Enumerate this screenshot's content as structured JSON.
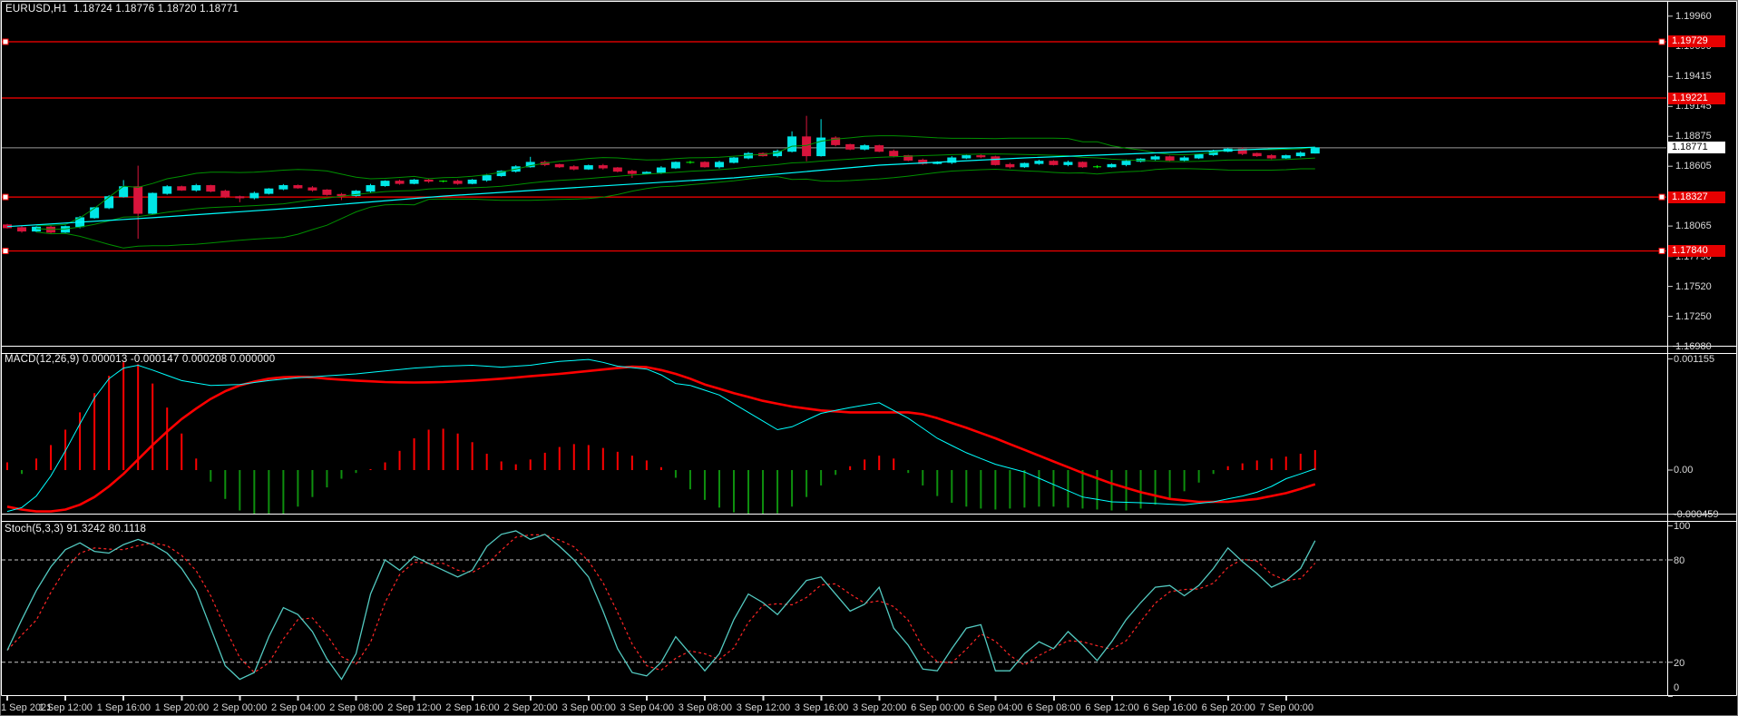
{
  "app": {
    "window_title": "EURUSD,H1"
  },
  "chart_data": [
    {
      "type": "candlestick",
      "title": "EURUSD,H1  1.18724 1.18776 1.18720 1.18771",
      "symbol": "EURUSD",
      "timeframe": "H1",
      "current_ohlc": {
        "open": 1.18724,
        "high": 1.18776,
        "low": 1.1872,
        "close": 1.18771
      },
      "y_axis_ticks": [
        "1.19960",
        "1.19690",
        "1.19415",
        "1.19145",
        "1.18875",
        "1.18605",
        "1.18335",
        "1.18065",
        "1.17790",
        "1.17520",
        "1.17250",
        "1.16980"
      ],
      "x_axis_labels": [
        "1 Sep 2021",
        "1 Sep 12:00",
        "1 Sep 16:00",
        "1 Sep 20:00",
        "2 Sep 00:00",
        "2 Sep 04:00",
        "2 Sep 08:00",
        "2 Sep 12:00",
        "2 Sep 16:00",
        "2 Sep 20:00",
        "3 Sep 00:00",
        "3 Sep 04:00",
        "3 Sep 08:00",
        "3 Sep 12:00",
        "3 Sep 16:00",
        "3 Sep 20:00",
        "6 Sep 00:00",
        "6 Sep 04:00",
        "6 Sep 08:00",
        "6 Sep 12:00",
        "6 Sep 16:00",
        "6 Sep 20:00",
        "7 Sep 00:00"
      ],
      "horizontal_lines": [
        {
          "label": "1.19729",
          "value": 1.19729,
          "end_markers": true
        },
        {
          "label": "1.19221",
          "value": 1.19221,
          "end_markers": false
        },
        {
          "label": "1.18327",
          "value": 1.18327,
          "end_markers": true
        },
        {
          "label": "1.17840",
          "value": 1.1784,
          "end_markers": true
        }
      ],
      "bid_line": {
        "label": "1.18771",
        "value": 1.18771
      },
      "candles": {
        "first_open": 1.18075,
        "closes": [
          1.1805,
          1.1802,
          1.18055,
          1.1801,
          1.1806,
          1.1814,
          1.1823,
          1.1833,
          1.1842,
          1.1818,
          1.1836,
          1.1842,
          1.1839,
          1.1843,
          1.1838,
          1.1833,
          1.1832,
          1.1836,
          1.184,
          1.1843,
          1.1841,
          1.1839,
          1.1835,
          1.1834,
          1.1838,
          1.1843,
          1.1847,
          1.1845,
          1.1848,
          1.1847,
          1.1847,
          1.1845,
          1.1848,
          1.1852,
          1.1856,
          1.186,
          1.1864,
          1.1862,
          1.186,
          1.1858,
          1.1861,
          1.1859,
          1.1856,
          1.1854,
          1.1855,
          1.1859,
          1.1864,
          1.1864,
          1.186,
          1.1864,
          1.1868,
          1.1872,
          1.187,
          1.1874,
          1.1887,
          1.187,
          1.1886,
          1.188,
          1.1876,
          1.1879,
          1.1874,
          1.187,
          1.1866,
          1.1863,
          1.1864,
          1.1868,
          1.187,
          1.1869,
          1.1862,
          1.186,
          1.1863,
          1.1865,
          1.1862,
          1.1864,
          1.186,
          1.186,
          1.1862,
          1.1865,
          1.1867,
          1.1869,
          1.1866,
          1.1868,
          1.1871,
          1.1874,
          1.1876,
          1.1872,
          1.187,
          1.1868,
          1.187,
          1.18724,
          1.18771
        ],
        "wick_overrides": {
          "8": {
            "h": 1.1848
          },
          "9": {
            "h": 1.1861,
            "l": 1.1795
          },
          "16": {
            "l": 1.1828
          },
          "23": {
            "l": 1.183
          },
          "36": {
            "h": 1.1869
          },
          "43": {
            "l": 1.185
          },
          "54": {
            "h": 1.1892
          },
          "55": {
            "h": 1.1906,
            "l": 1.1865
          },
          "56": {
            "h": 1.1903
          },
          "90": {
            "h": 1.18776,
            "l": 1.1872
          }
        }
      },
      "overlays": {
        "bollinger": {
          "period": 20,
          "deviation": 2,
          "color": "#009000"
        },
        "slow_ma": {
          "color": "#00ffff",
          "points": [
            [
              0,
              1.1806
            ],
            [
              10,
              1.1814
            ],
            [
              20,
              1.1823
            ],
            [
              30,
              1.18335
            ],
            [
              40,
              1.1842
            ],
            [
              50,
              1.185
            ],
            [
              60,
              1.18615
            ],
            [
              70,
              1.1868
            ],
            [
              80,
              1.1873
            ],
            [
              90,
              1.18777
            ]
          ]
        }
      },
      "colors": {
        "bull": "#00e6e6",
        "bear": "#d8143c",
        "doji": "#00ff00",
        "hline": "#ff0000",
        "bid_line": "#9a9a9a",
        "badge_bg": "#e60000",
        "badge_text": "#ffffff",
        "bid_badge_bg": "#ffffff",
        "bid_badge_text": "#000000"
      }
    },
    {
      "type": "macd",
      "title": "MACD(12,26,9) 0.000013 -0.000147 0.000208 0.000000",
      "params": "12,26,9",
      "current_values": [
        "0.000013",
        "-0.000147",
        "0.000208",
        "0.000000"
      ],
      "y_axis_ticks": [
        {
          "label": "0.001155",
          "value": 1155
        },
        {
          "label": "0.00",
          "value": 0
        },
        {
          "label": "-0.000459",
          "value": -459
        }
      ],
      "histogram_micro": [
        80,
        -40,
        120,
        260,
        420,
        600,
        800,
        980,
        1120,
        1100,
        900,
        650,
        380,
        120,
        -120,
        -300,
        -420,
        -480,
        -500,
        -460,
        -380,
        -280,
        -180,
        -90,
        -30,
        10,
        80,
        200,
        330,
        420,
        430,
        380,
        290,
        170,
        90,
        60,
        110,
        180,
        240,
        270,
        260,
        230,
        190,
        150,
        100,
        30,
        -80,
        -200,
        -310,
        -390,
        -440,
        -470,
        -480,
        -450,
        -380,
        -280,
        -160,
        -50,
        40,
        110,
        150,
        120,
        -30,
        -160,
        -270,
        -340,
        -380,
        -400,
        -410,
        -400,
        -390,
        -380,
        -380,
        -390,
        -400,
        -410,
        -420,
        -420,
        -400,
        -360,
        -300,
        -220,
        -130,
        -40,
        40,
        70,
        100,
        120,
        140,
        170,
        208
      ],
      "main_line_anchors": [
        [
          0,
          -430
        ],
        [
          1,
          -390
        ],
        [
          2,
          -270
        ],
        [
          3,
          -60
        ],
        [
          4,
          200
        ],
        [
          5,
          480
        ],
        [
          6,
          750
        ],
        [
          7,
          950
        ],
        [
          8,
          1060
        ],
        [
          9,
          1090
        ],
        [
          10,
          1040
        ],
        [
          12,
          930
        ],
        [
          14,
          880
        ],
        [
          16,
          890
        ],
        [
          18,
          930
        ],
        [
          20,
          960
        ],
        [
          22,
          980
        ],
        [
          24,
          1000
        ],
        [
          26,
          1030
        ],
        [
          28,
          1060
        ],
        [
          30,
          1080
        ],
        [
          32,
          1090
        ],
        [
          34,
          1070
        ],
        [
          36,
          1090
        ],
        [
          38,
          1130
        ],
        [
          40,
          1150
        ],
        [
          41,
          1120
        ],
        [
          42,
          1080
        ],
        [
          44,
          1050
        ],
        [
          45,
          990
        ],
        [
          46,
          900
        ],
        [
          47,
          880
        ],
        [
          49,
          780
        ],
        [
          51,
          600
        ],
        [
          53,
          420
        ],
        [
          54,
          450
        ],
        [
          56,
          590
        ],
        [
          58,
          650
        ],
        [
          60,
          700
        ],
        [
          62,
          540
        ],
        [
          64,
          330
        ],
        [
          66,
          180
        ],
        [
          68,
          60
        ],
        [
          70,
          -20
        ],
        [
          72,
          -150
        ],
        [
          74,
          -280
        ],
        [
          76,
          -330
        ],
        [
          78,
          -340
        ],
        [
          80,
          -355
        ],
        [
          81,
          -360
        ],
        [
          83,
          -330
        ],
        [
          85,
          -270
        ],
        [
          86,
          -230
        ],
        [
          87,
          -170
        ],
        [
          88,
          -90
        ],
        [
          89,
          -40
        ],
        [
          90,
          13
        ]
      ],
      "signal_line_anchors": [
        [
          0,
          -380
        ],
        [
          1,
          -410
        ],
        [
          2,
          -430
        ],
        [
          3,
          -430
        ],
        [
          4,
          -410
        ],
        [
          5,
          -360
        ],
        [
          6,
          -280
        ],
        [
          7,
          -170
        ],
        [
          8,
          -40
        ],
        [
          9,
          110
        ],
        [
          10,
          260
        ],
        [
          11,
          400
        ],
        [
          12,
          530
        ],
        [
          13,
          640
        ],
        [
          14,
          740
        ],
        [
          15,
          820
        ],
        [
          16,
          880
        ],
        [
          17,
          920
        ],
        [
          18,
          950
        ],
        [
          19,
          965
        ],
        [
          20,
          970
        ],
        [
          21,
          965
        ],
        [
          22,
          950
        ],
        [
          24,
          930
        ],
        [
          26,
          915
        ],
        [
          28,
          910
        ],
        [
          30,
          915
        ],
        [
          32,
          930
        ],
        [
          34,
          950
        ],
        [
          36,
          975
        ],
        [
          38,
          1000
        ],
        [
          40,
          1030
        ],
        [
          42,
          1060
        ],
        [
          43,
          1075
        ],
        [
          44,
          1070
        ],
        [
          45,
          1040
        ],
        [
          46,
          1000
        ],
        [
          47,
          950
        ],
        [
          48,
          890
        ],
        [
          50,
          800
        ],
        [
          52,
          720
        ],
        [
          54,
          660
        ],
        [
          56,
          620
        ],
        [
          58,
          600
        ],
        [
          60,
          600
        ],
        [
          62,
          600
        ],
        [
          63,
          580
        ],
        [
          64,
          540
        ],
        [
          66,
          440
        ],
        [
          68,
          330
        ],
        [
          70,
          210
        ],
        [
          72,
          90
        ],
        [
          74,
          -30
        ],
        [
          76,
          -140
        ],
        [
          78,
          -230
        ],
        [
          80,
          -300
        ],
        [
          82,
          -330
        ],
        [
          84,
          -330
        ],
        [
          86,
          -300
        ],
        [
          88,
          -240
        ],
        [
          89,
          -195
        ],
        [
          90,
          -147
        ]
      ],
      "colors": {
        "hist_up": "#ff0000",
        "hist_down": "#0e8f0e",
        "main": "#00ffff",
        "signal": "#ff0000"
      }
    },
    {
      "type": "stochastic",
      "title": "Stoch(5,3,3) 91.3242 80.1118",
      "params": "5,3,3",
      "current_k": "91.3242",
      "current_d": "80.1118",
      "levels": [
        80,
        20
      ],
      "y_axis_ticks": [
        {
          "label": "100",
          "value": 100
        },
        {
          "label": "80",
          "value": 80
        },
        {
          "label": "20",
          "value": 20
        },
        {
          "label": "0",
          "value": 0
        }
      ],
      "k_values": [
        27,
        45,
        62,
        76,
        86,
        90,
        85,
        84,
        89,
        92,
        89,
        84,
        75,
        62,
        40,
        18,
        10,
        14,
        35,
        52,
        48,
        38,
        22,
        10,
        25,
        60,
        80,
        74,
        82,
        78,
        74,
        70,
        74,
        88,
        95,
        97,
        92,
        95,
        88,
        80,
        70,
        50,
        28,
        14,
        12,
        20,
        35,
        25,
        15,
        25,
        45,
        60,
        55,
        48,
        58,
        68,
        70,
        60,
        50,
        54,
        64,
        40,
        30,
        16,
        15,
        28,
        40,
        42,
        15,
        15,
        25,
        32,
        28,
        38,
        30,
        21,
        32,
        45,
        55,
        64,
        65,
        59,
        65,
        75,
        87,
        79,
        72,
        64,
        68,
        75,
        91.3
      ],
      "d_period": 3,
      "colors": {
        "k": "#53cac1",
        "d": "#ff2626",
        "levels": "#c8c8c8"
      }
    }
  ]
}
